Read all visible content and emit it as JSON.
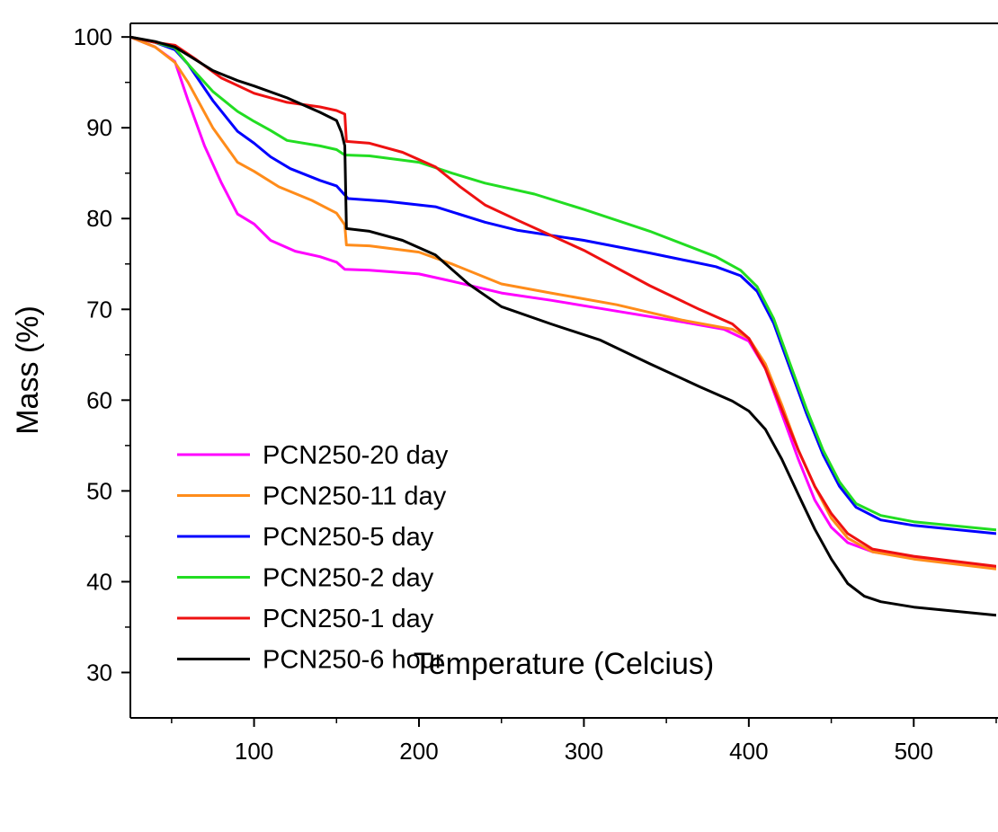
{
  "chart_data": {
    "type": "line",
    "title": "",
    "xlabel": "Temperature (Celcius)",
    "ylabel": "Mass (%)",
    "xlim": [
      25,
      550
    ],
    "ylim": [
      25,
      101.5
    ],
    "x_ticks": [
      100,
      200,
      300,
      400,
      500
    ],
    "y_ticks": [
      30,
      40,
      50,
      60,
      70,
      80,
      90,
      100
    ],
    "grid": false,
    "legend_position": "lower-left",
    "series": [
      {
        "name": "PCN250-20 day",
        "color": "#ff00ff",
        "points": [
          [
            25,
            100
          ],
          [
            40,
            98.9
          ],
          [
            52,
            97.3
          ],
          [
            60,
            93
          ],
          [
            70,
            88
          ],
          [
            80,
            84
          ],
          [
            90,
            80.5
          ],
          [
            100,
            79.4
          ],
          [
            110,
            77.6
          ],
          [
            125,
            76.4
          ],
          [
            140,
            75.8
          ],
          [
            150,
            75.2
          ],
          [
            155,
            74.4
          ],
          [
            170,
            74.3
          ],
          [
            200,
            73.9
          ],
          [
            220,
            73.1
          ],
          [
            250,
            71.8
          ],
          [
            280,
            71.0
          ],
          [
            320,
            69.8
          ],
          [
            360,
            68.6
          ],
          [
            385,
            67.8
          ],
          [
            400,
            66.5
          ],
          [
            410,
            63.5
          ],
          [
            420,
            58.5
          ],
          [
            430,
            53.5
          ],
          [
            440,
            49.0
          ],
          [
            450,
            46.0
          ],
          [
            460,
            44.3
          ],
          [
            475,
            43.3
          ],
          [
            500,
            42.6
          ],
          [
            550,
            41.6
          ]
        ]
      },
      {
        "name": "PCN250-11 day",
        "color": "#ff8c1a",
        "points": [
          [
            25,
            100
          ],
          [
            40,
            98.9
          ],
          [
            52,
            97.2
          ],
          [
            60,
            95
          ],
          [
            75,
            90
          ],
          [
            90,
            86.2
          ],
          [
            100,
            85.2
          ],
          [
            115,
            83.5
          ],
          [
            135,
            82.0
          ],
          [
            150,
            80.6
          ],
          [
            155,
            79.3
          ],
          [
            156,
            77.1
          ],
          [
            170,
            77.0
          ],
          [
            200,
            76.3
          ],
          [
            220,
            75.0
          ],
          [
            250,
            72.8
          ],
          [
            280,
            71.8
          ],
          [
            320,
            70.5
          ],
          [
            360,
            68.8
          ],
          [
            390,
            67.8
          ],
          [
            400,
            66.8
          ],
          [
            410,
            64.0
          ],
          [
            420,
            59.5
          ],
          [
            430,
            54.5
          ],
          [
            440,
            50.5
          ],
          [
            450,
            47.0
          ],
          [
            460,
            44.8
          ],
          [
            475,
            43.3
          ],
          [
            500,
            42.5
          ],
          [
            550,
            41.4
          ]
        ]
      },
      {
        "name": "PCN250-5 day",
        "color": "#0000ff",
        "points": [
          [
            25,
            100
          ],
          [
            40,
            99.4
          ],
          [
            52,
            98.6
          ],
          [
            60,
            97
          ],
          [
            75,
            93
          ],
          [
            90,
            89.6
          ],
          [
            100,
            88.3
          ],
          [
            110,
            86.8
          ],
          [
            122,
            85.5
          ],
          [
            140,
            84.2
          ],
          [
            150,
            83.6
          ],
          [
            155,
            82.6
          ],
          [
            157,
            82.2
          ],
          [
            180,
            81.9
          ],
          [
            210,
            81.3
          ],
          [
            240,
            79.6
          ],
          [
            260,
            78.7
          ],
          [
            300,
            77.6
          ],
          [
            340,
            76.2
          ],
          [
            380,
            74.7
          ],
          [
            395,
            73.7
          ],
          [
            405,
            72.0
          ],
          [
            415,
            68.5
          ],
          [
            425,
            63.5
          ],
          [
            435,
            58.5
          ],
          [
            445,
            54.0
          ],
          [
            455,
            50.5
          ],
          [
            465,
            48.2
          ],
          [
            480,
            46.8
          ],
          [
            500,
            46.2
          ],
          [
            550,
            45.3
          ]
        ]
      },
      {
        "name": "PCN250-2 day",
        "color": "#22dd22",
        "points": [
          [
            25,
            100
          ],
          [
            40,
            99.4
          ],
          [
            52,
            98.8
          ],
          [
            60,
            97
          ],
          [
            75,
            94
          ],
          [
            90,
            91.8
          ],
          [
            100,
            90.7
          ],
          [
            110,
            89.7
          ],
          [
            120,
            88.6
          ],
          [
            140,
            88.0
          ],
          [
            150,
            87.6
          ],
          [
            155,
            87.0
          ],
          [
            170,
            86.9
          ],
          [
            200,
            86.2
          ],
          [
            220,
            85.0
          ],
          [
            240,
            83.9
          ],
          [
            270,
            82.7
          ],
          [
            300,
            81.0
          ],
          [
            340,
            78.6
          ],
          [
            380,
            75.8
          ],
          [
            395,
            74.3
          ],
          [
            405,
            72.5
          ],
          [
            415,
            69.0
          ],
          [
            425,
            64.0
          ],
          [
            435,
            59.0
          ],
          [
            445,
            54.5
          ],
          [
            455,
            51.0
          ],
          [
            465,
            48.6
          ],
          [
            480,
            47.3
          ],
          [
            500,
            46.6
          ],
          [
            550,
            45.7
          ]
        ]
      },
      {
        "name": "PCN250-1 day",
        "color": "#ee1111",
        "points": [
          [
            25,
            100
          ],
          [
            40,
            99.4
          ],
          [
            52,
            99.1
          ],
          [
            65,
            97.5
          ],
          [
            80,
            95.5
          ],
          [
            100,
            93.8
          ],
          [
            120,
            92.8
          ],
          [
            140,
            92.3
          ],
          [
            150,
            91.9
          ],
          [
            155,
            91.5
          ],
          [
            156,
            88.5
          ],
          [
            170,
            88.3
          ],
          [
            190,
            87.3
          ],
          [
            210,
            85.7
          ],
          [
            225,
            83.5
          ],
          [
            240,
            81.5
          ],
          [
            260,
            79.8
          ],
          [
            300,
            76.5
          ],
          [
            340,
            72.6
          ],
          [
            370,
            70.0
          ],
          [
            390,
            68.4
          ],
          [
            400,
            66.8
          ],
          [
            410,
            63.5
          ],
          [
            420,
            59.0
          ],
          [
            430,
            54.5
          ],
          [
            440,
            50.5
          ],
          [
            450,
            47.5
          ],
          [
            460,
            45.3
          ],
          [
            475,
            43.6
          ],
          [
            500,
            42.8
          ],
          [
            550,
            41.7
          ]
        ]
      },
      {
        "name": "PCN250-6 hour",
        "color": "#000000",
        "points": [
          [
            25,
            100
          ],
          [
            40,
            99.5
          ],
          [
            52,
            98.9
          ],
          [
            60,
            98
          ],
          [
            75,
            96.3
          ],
          [
            90,
            95.2
          ],
          [
            100,
            94.6
          ],
          [
            120,
            93.3
          ],
          [
            140,
            91.7
          ],
          [
            150,
            90.8
          ],
          [
            153,
            89.5
          ],
          [
            155,
            88.0
          ],
          [
            156,
            78.9
          ],
          [
            170,
            78.6
          ],
          [
            190,
            77.6
          ],
          [
            210,
            76.0
          ],
          [
            230,
            72.8
          ],
          [
            250,
            70.3
          ],
          [
            280,
            68.4
          ],
          [
            310,
            66.6
          ],
          [
            340,
            64.0
          ],
          [
            370,
            61.5
          ],
          [
            390,
            59.9
          ],
          [
            400,
            58.8
          ],
          [
            410,
            56.8
          ],
          [
            420,
            53.5
          ],
          [
            430,
            49.6
          ],
          [
            440,
            45.8
          ],
          [
            450,
            42.5
          ],
          [
            460,
            39.8
          ],
          [
            470,
            38.4
          ],
          [
            480,
            37.8
          ],
          [
            500,
            37.2
          ],
          [
            550,
            36.3
          ]
        ]
      }
    ]
  }
}
